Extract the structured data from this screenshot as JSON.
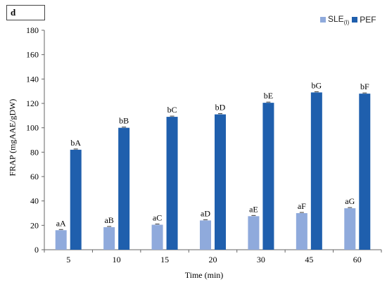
{
  "panel_label": "d",
  "legend": {
    "series1_main": "SLE",
    "series1_sub": "(I)",
    "series2": "PEF"
  },
  "chart_data": {
    "type": "bar",
    "xlabel": "Time (min)",
    "ylabel": "FRAP (mgAAE/gDW)",
    "ylim": [
      0,
      180
    ],
    "yticks": [
      0,
      20,
      40,
      60,
      80,
      100,
      120,
      140,
      160,
      180
    ],
    "grid": false,
    "legend_position": "top-right",
    "categories": [
      "5",
      "10",
      "15",
      "20",
      "30",
      "45",
      "60"
    ],
    "series": [
      {
        "name": "SLE(I)",
        "color": "#8faadc",
        "values": [
          16,
          18.5,
          20.5,
          24,
          27.5,
          30,
          34
        ],
        "labels": [
          "aA",
          "aB",
          "aC",
          "aD",
          "aE",
          "aF",
          "aG"
        ]
      },
      {
        "name": "PEF",
        "color": "#1f5fad",
        "values": [
          82,
          100,
          109,
          111,
          120.5,
          129,
          128
        ],
        "labels": [
          "bA",
          "bB",
          "bC",
          "bD",
          "bE",
          "bG",
          "bF"
        ]
      }
    ]
  }
}
